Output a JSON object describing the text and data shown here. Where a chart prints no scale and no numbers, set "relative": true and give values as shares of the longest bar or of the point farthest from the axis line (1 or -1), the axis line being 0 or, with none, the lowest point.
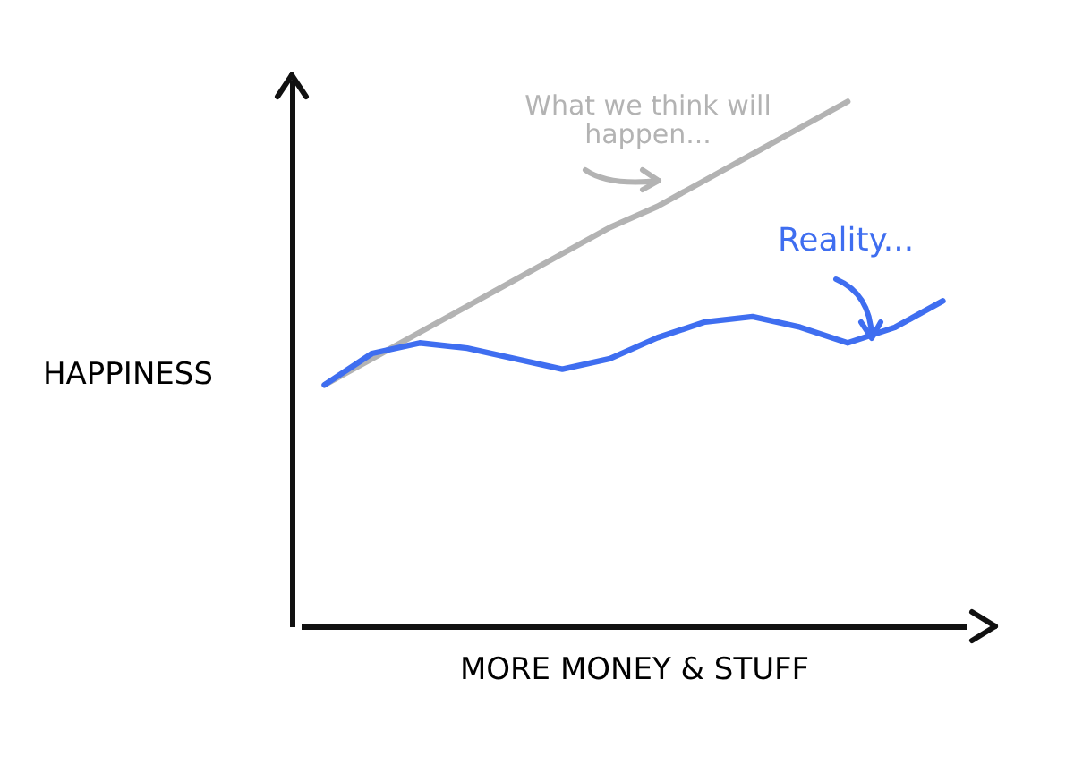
{
  "chart_data": {
    "type": "line",
    "relative": true,
    "xlabel": "MORE MONEY & STUFF",
    "ylabel": "HAPPINESS",
    "categories": [
      null,
      null,
      null,
      null,
      null,
      null,
      null,
      null,
      null,
      null,
      null,
      null,
      null,
      null
    ],
    "series": [
      {
        "name": "What we think will happen...",
        "color": "#b3b3b3",
        "values": [
          0.46,
          0.51,
          0.56,
          0.61,
          0.66,
          0.71,
          0.76,
          0.8,
          0.85,
          0.9,
          0.95,
          1.0,
          null,
          null
        ]
      },
      {
        "name": "Reality...",
        "color": "#3f6ef0",
        "values": [
          0.46,
          0.52,
          0.54,
          0.53,
          0.51,
          0.49,
          0.51,
          0.55,
          0.58,
          0.59,
          0.57,
          0.54,
          0.57,
          0.62
        ]
      }
    ]
  }
}
